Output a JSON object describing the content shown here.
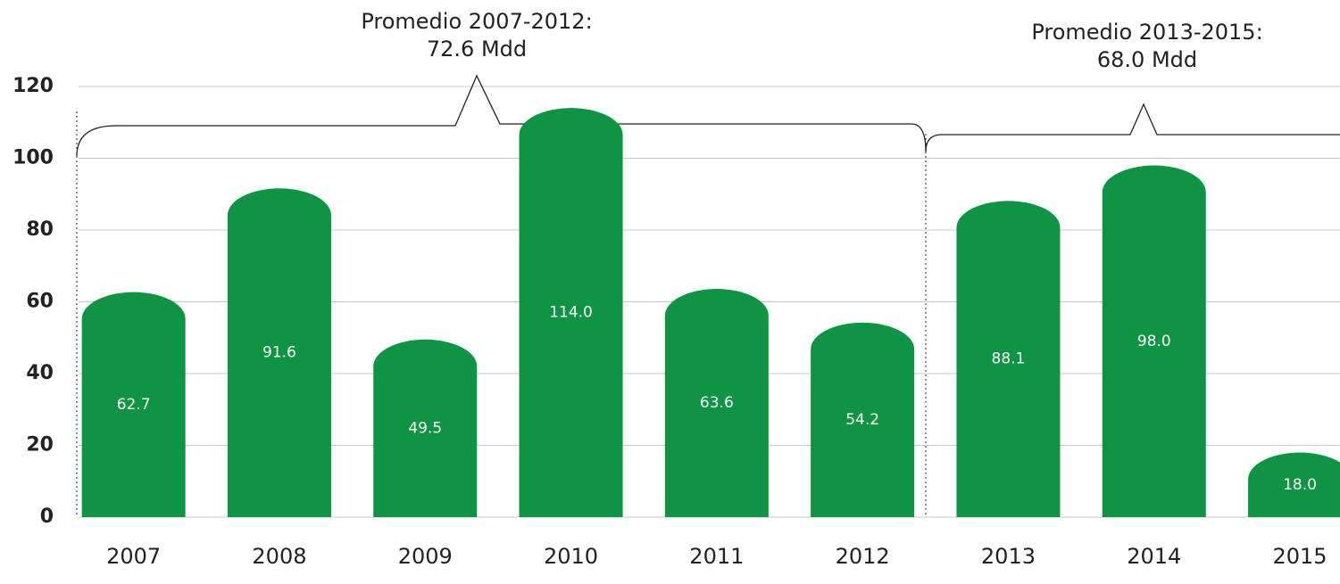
{
  "chart_data": {
    "type": "bar",
    "categories": [
      "2007",
      "2008",
      "2009",
      "2010",
      "2011",
      "2012",
      "2013",
      "2014",
      "2015"
    ],
    "values": [
      62.7,
      91.6,
      49.5,
      114.0,
      63.6,
      54.2,
      88.1,
      98.0,
      18.0
    ],
    "value_labels": [
      "62.7",
      "91.6",
      "49.5",
      "114.0",
      "63.6",
      "54.2",
      "88.1",
      "98.0",
      "18.0"
    ],
    "color": "#0e9443",
    "ylim": [
      0,
      120
    ],
    "yticks": [
      0,
      20,
      40,
      60,
      80,
      100,
      120
    ],
    "grid": true,
    "annotations": [
      {
        "lines": [
          "Promedio 2007-2012:",
          "72.6 Mdd"
        ]
      },
      {
        "lines": [
          "Promedio 2013-2015:",
          "68.0 Mdd"
        ]
      }
    ]
  }
}
